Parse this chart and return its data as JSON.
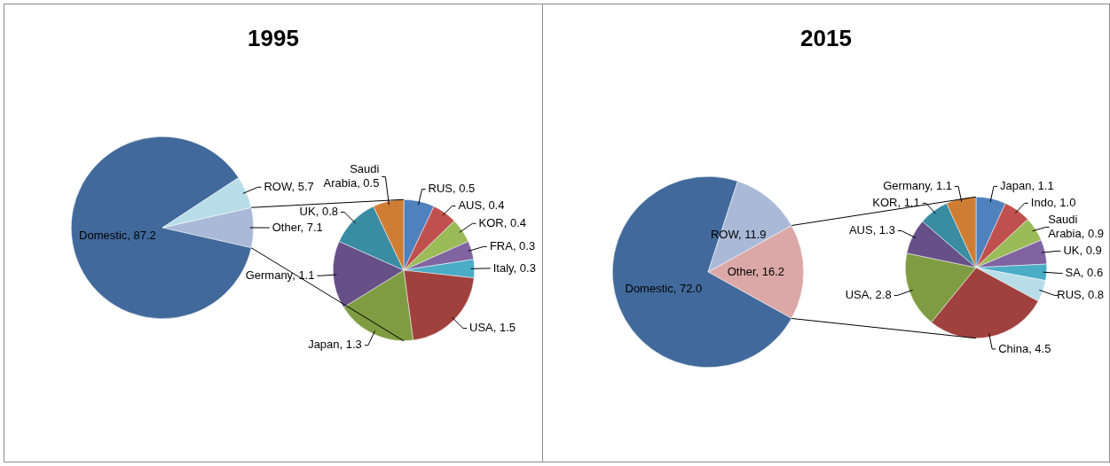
{
  "chart_data": [
    {
      "type": "pie",
      "title": "1995",
      "categories": [
        "Other",
        "Domestic",
        "ROW"
      ],
      "values": [
        7.1,
        87.2,
        5.7
      ],
      "value_labels": [
        "7.1",
        "87.2",
        "5.7"
      ],
      "colors": [
        "#a9b9d7",
        "#41699b",
        "#b7dde8"
      ],
      "data_labels": true
    },
    {
      "type": "pie",
      "categories": [
        "RUS",
        "AUS",
        "KOR",
        "FRA",
        "Italy",
        "USA",
        "Japan",
        "Germany",
        "UK",
        "Saudi Arabia"
      ],
      "values": [
        0.5,
        0.4,
        0.4,
        0.3,
        0.3,
        1.5,
        1.3,
        1.1,
        0.8,
        0.5
      ],
      "value_labels": [
        "0.5",
        "0.4",
        "0.4",
        "0.3",
        "0.3",
        "1.5",
        "1.3",
        "1.1",
        "0.8",
        "0.5"
      ],
      "colors": [
        "#4f81bd",
        "#c0504d",
        "#9bbb59",
        "#8064a2",
        "#4bacc6",
        "#a0413e",
        "#7f9c42",
        "#674f88",
        "#3a8ca3",
        "#d07d34"
      ],
      "data_labels": true
    },
    {
      "type": "pie",
      "title": "2015",
      "categories": [
        "Other",
        "Domestic",
        "ROW"
      ],
      "values": [
        16.2,
        72.0,
        11.9
      ],
      "value_labels": [
        "16.2",
        "72.0",
        "11.9"
      ],
      "colors": [
        "#dba8a7",
        "#41699b",
        "#a9b9d7"
      ],
      "data_labels": true
    },
    {
      "type": "pie",
      "categories": [
        "Japan",
        "Indo",
        "Saudi Arabia",
        "UK",
        "SA",
        "RUS",
        "China",
        "USA",
        "AUS",
        "KOR",
        "Germany"
      ],
      "values": [
        1.1,
        1.0,
        0.9,
        0.9,
        0.6,
        0.8,
        4.5,
        2.8,
        1.3,
        1.1,
        1.1
      ],
      "value_labels": [
        "1.1",
        "1.0",
        "0.9",
        "0.9",
        "0.6",
        "0.8",
        "4.5",
        "2.8",
        "1.3",
        "1.1",
        "1.1"
      ],
      "colors": [
        "#4f81bd",
        "#c0504d",
        "#9bbb59",
        "#8064a2",
        "#4bacc6",
        "#b7dde8",
        "#a0413e",
        "#7f9c42",
        "#674f88",
        "#3a8ca3",
        "#d07d34"
      ],
      "data_labels": true
    }
  ]
}
